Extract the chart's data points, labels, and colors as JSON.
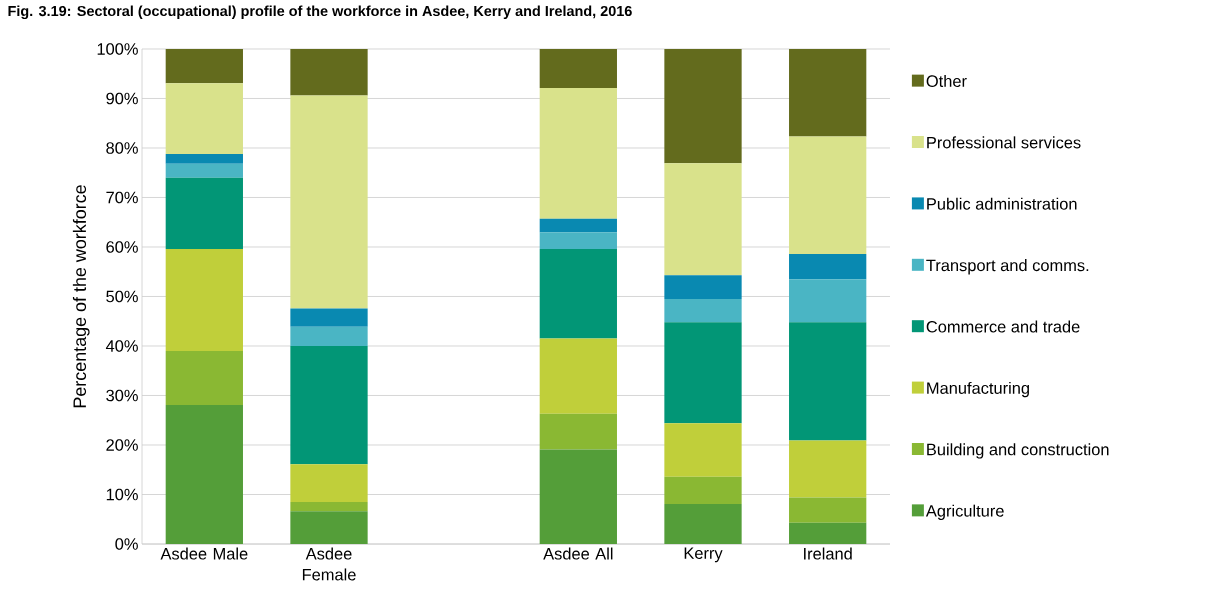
{
  "chart_data": {
    "type": "bar",
    "stacked": true,
    "title": "Fig. 3.19: Sectoral (occupational) profile of the workforce in Asdee, Kerry and Ireland, 2016",
    "ylabel": "Percentage of the workforce",
    "categories": [
      "Asdee Male",
      "Asdee Female",
      null,
      "Asdee All",
      "Kerry",
      "Ireland"
    ],
    "series": [
      {
        "name": "Agriculture",
        "color": "#549e39",
        "values": [
          28.1,
          6.6,
          null,
          19.1,
          8.1,
          4.3
        ]
      },
      {
        "name": "Building and construction",
        "color": "#8ab833",
        "values": [
          10.9,
          1.9,
          null,
          7.2,
          5.5,
          5.1
        ]
      },
      {
        "name": "Manufacturing",
        "color": "#c0cf3a",
        "values": [
          20.6,
          7.6,
          null,
          15.2,
          10.8,
          11.5
        ]
      },
      {
        "name": "Commerce and trade",
        "color": "#029676",
        "values": [
          14.4,
          23.9,
          null,
          18.1,
          20.4,
          23.9
        ]
      },
      {
        "name": "Transport and comms.",
        "color": "#4ab5c4",
        "values": [
          2.8,
          3.9,
          null,
          3.4,
          4.7,
          8.7
        ]
      },
      {
        "name": "Public administration",
        "color": "#0989b1",
        "values": [
          2.0,
          3.7,
          null,
          2.7,
          4.8,
          5.1
        ]
      },
      {
        "name": "Professional services",
        "color": "#d9e28b",
        "values": [
          14.3,
          43.0,
          null,
          26.4,
          22.6,
          23.7
        ]
      },
      {
        "name": "Other",
        "color": "#636b1d",
        "values": [
          6.9,
          9.4,
          null,
          7.9,
          23.1,
          17.7
        ]
      }
    ],
    "ylim": [
      0,
      100
    ],
    "yticks": [
      {
        "value": 0,
        "label": "0%"
      },
      {
        "value": 10,
        "label": "10%"
      },
      {
        "value": 20,
        "label": "20%"
      },
      {
        "value": 30,
        "label": "30%"
      },
      {
        "value": 40,
        "label": "40%"
      },
      {
        "value": 50,
        "label": "50%"
      },
      {
        "value": 60,
        "label": "60%"
      },
      {
        "value": 70,
        "label": "70%"
      },
      {
        "value": 80,
        "label": "80%"
      },
      {
        "value": 90,
        "label": "90%"
      },
      {
        "value": 100,
        "label": "100%"
      }
    ],
    "grid": "y",
    "legend": "right"
  }
}
